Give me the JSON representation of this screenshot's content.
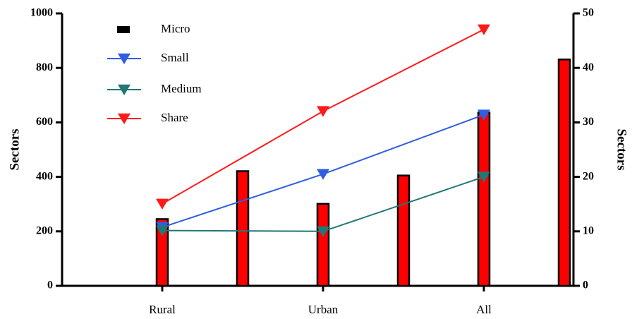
{
  "chart_data": {
    "type": "bar",
    "categories": [
      "Rural",
      "Urban",
      "All"
    ],
    "ylabel": "Sectors",
    "y2label": "Sectors",
    "ylim": [
      0,
      1000
    ],
    "yticks": [
      0,
      200,
      400,
      600,
      800,
      1000
    ],
    "y2lim": [
      0,
      50
    ],
    "y2ticks": [
      0,
      10,
      20,
      30,
      40,
      50
    ],
    "series": [
      {
        "name": "Micro",
        "type": "bar",
        "color": "#ff0000",
        "edgecolor": "#000000",
        "values": [
          245,
          301,
          636
        ]
      },
      {
        "type": "bar",
        "color": "#ff0000",
        "edgecolor": "#000000",
        "values": [
          421,
          405,
          831
        ]
      },
      {
        "name": "Small",
        "type": "line",
        "color": "#2f5fe0",
        "values": [
          215,
          410,
          628
        ]
      },
      {
        "name": "Medium",
        "type": "line",
        "color": "#227777",
        "values": [
          203,
          200,
          400
        ]
      },
      {
        "name": "Share",
        "type": "line",
        "color": "#ff1a1a",
        "values": [
          301,
          641,
          941
        ]
      }
    ]
  }
}
